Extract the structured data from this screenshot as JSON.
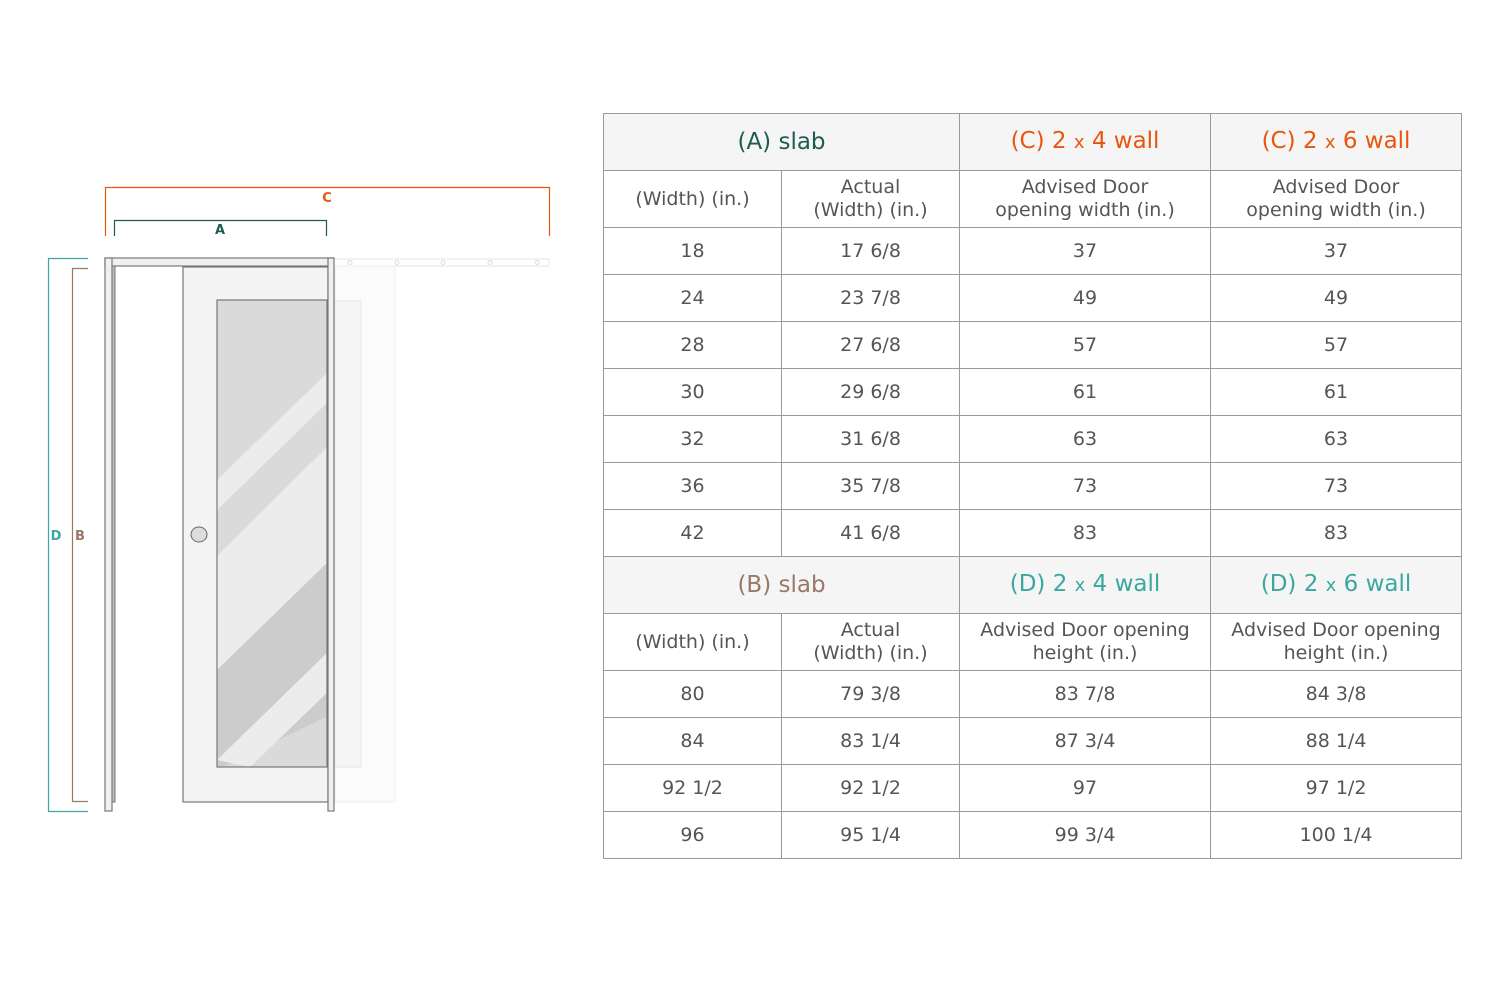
{
  "colors": {
    "A": "#1e5b50",
    "B": "#9a7766",
    "C": "#e8560c",
    "D": "#3aa8a0"
  },
  "diagram": {
    "labels": {
      "A": "A",
      "B": "B",
      "C": "C",
      "D": "D"
    }
  },
  "width_table": {
    "headers": [
      {
        "letter": "(A)",
        "text": "slab"
      },
      {
        "letter": "(C)",
        "pre": "2",
        "x": "x",
        "post": "4 wall"
      },
      {
        "letter": "(C)",
        "pre": "2",
        "x": "x",
        "post": "6 wall"
      }
    ],
    "subheaders": [
      "(Width) (in.)",
      "Actual (Width) (in.)",
      "Advised Door opening width (in.)",
      "Advised Door opening width (in.)"
    ],
    "rows": [
      [
        "18",
        "17 6/8",
        "37",
        "37"
      ],
      [
        "24",
        "23 7/8",
        "49",
        "49"
      ],
      [
        "28",
        "27 6/8",
        "57",
        "57"
      ],
      [
        "30",
        "29 6/8",
        "61",
        "61"
      ],
      [
        "32",
        "31 6/8",
        "63",
        "63"
      ],
      [
        "36",
        "35 7/8",
        "73",
        "73"
      ],
      [
        "42",
        "41 6/8",
        "83",
        "83"
      ]
    ]
  },
  "height_table": {
    "headers": [
      {
        "letter": "(B)",
        "text": "slab"
      },
      {
        "letter": "(D)",
        "pre": "2",
        "x": "x",
        "post": "4 wall"
      },
      {
        "letter": "(D)",
        "pre": "2",
        "x": "x",
        "post": "6 wall"
      }
    ],
    "subheaders": [
      "(Width) (in.)",
      "Actual (Width) (in.)",
      "Advised Door opening height (in.)",
      "Advised Door opening height (in.)"
    ],
    "rows": [
      [
        "80",
        "79 3/8",
        "83 7/8",
        "84 3/8"
      ],
      [
        "84",
        "83 1/4",
        "87 3/4",
        "88 1/4"
      ],
      [
        "92 1/2",
        "92 1/2",
        "97",
        "97 1/2"
      ],
      [
        "96",
        "95 1/4",
        "99 3/4",
        "100 1/4"
      ]
    ]
  }
}
